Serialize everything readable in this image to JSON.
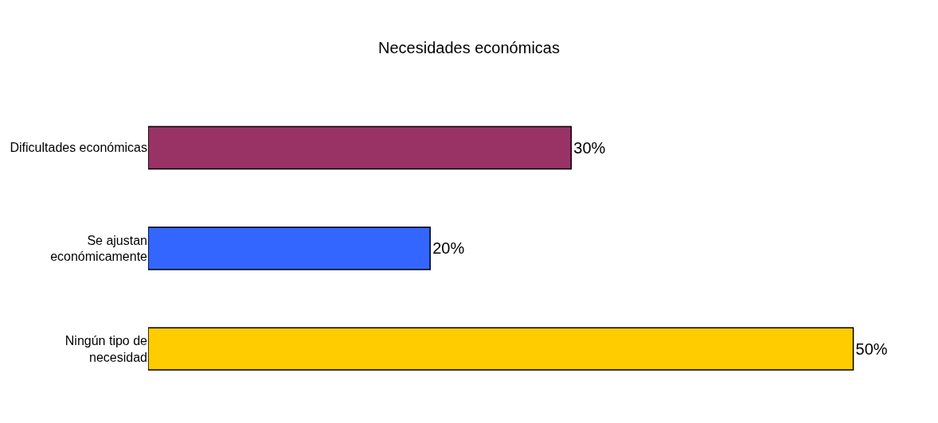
{
  "chart_data": {
    "type": "bar",
    "orientation": "horizontal",
    "title": "Necesidades económicas",
    "categories": [
      "Dificultades económicas",
      "Se ajustan\neconómicamente",
      "Ningún tipo de\nnecesidad"
    ],
    "values": [
      30,
      20,
      50
    ],
    "colors": [
      "#993366",
      "#3366ff",
      "#ffcc00"
    ],
    "value_labels": [
      "30%",
      "20%",
      "50%"
    ]
  }
}
